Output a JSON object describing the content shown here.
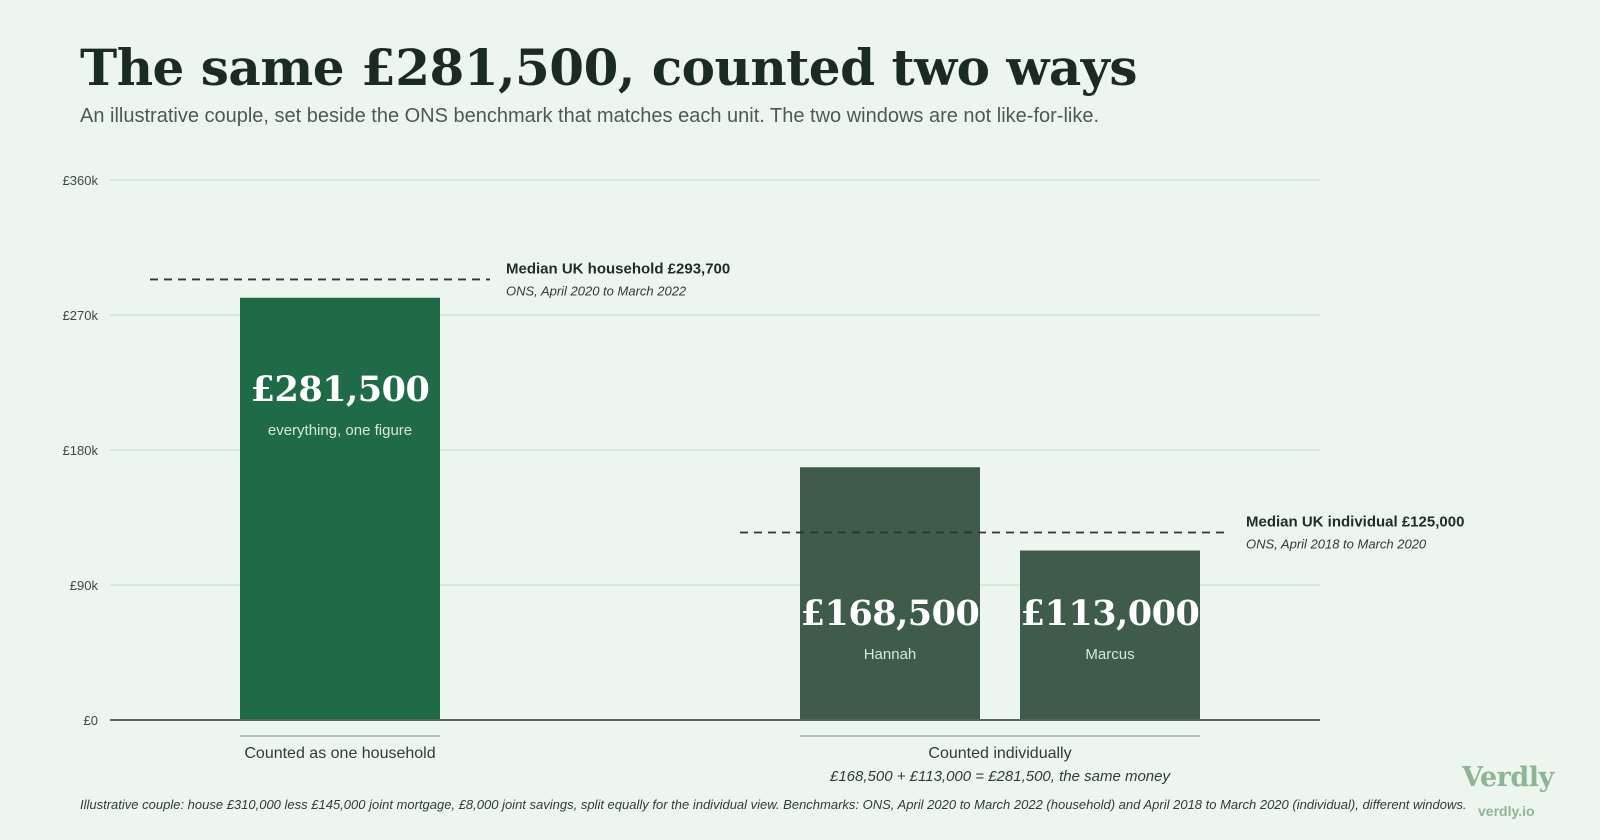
{
  "header": {
    "title": "The same £281,500, counted two ways",
    "subtitle": "An illustrative couple, set beside the ONS benchmark that matches each unit. The two windows are not like-for-like."
  },
  "footer": {
    "note": "Illustrative couple: house £310,000 less £145,000 joint mortgage, £8,000 joint savings, split equally for the individual view. Benchmarks: ONS, April 2020 to March 2022 (household) and April 2018 to March 2020 (individual), different windows.",
    "brand": "Verdly",
    "url": "verdly.io"
  },
  "colors": {
    "background": "#edf6ee",
    "household_bar": "#206b47",
    "individual_bar": "#3f5b4a",
    "grid": "#cfe3d4",
    "axis": "#55665d",
    "benchmark_line": "#333333",
    "brand": "#8db596"
  },
  "chart_data": {
    "type": "bar",
    "title": "The same £281,500, counted two ways",
    "ylim": [
      0,
      360000
    ],
    "yticks": [
      {
        "value": 0,
        "label": "£0"
      },
      {
        "value": 90000,
        "label": "£90k"
      },
      {
        "value": 180000,
        "label": "£180k"
      },
      {
        "value": 270000,
        "label": "£270k"
      },
      {
        "value": 360000,
        "label": "£360k"
      }
    ],
    "grid": true,
    "groups": [
      {
        "label": "Counted as one household",
        "sublabel": "",
        "bars": [
          {
            "value": 281500,
            "value_label": "£281,500",
            "caption": "everything, one figure",
            "color": "#206b47"
          }
        ],
        "benchmark": {
          "value": 293700,
          "label": "Median UK household £293,700",
          "source": "ONS, April 2020 to March 2022"
        }
      },
      {
        "label": "Counted individually",
        "sublabel": "£168,500 + £113,000 = £281,500, the same money",
        "bars": [
          {
            "value": 168500,
            "value_label": "£168,500",
            "caption": "Hannah",
            "color": "#3f5b4a"
          },
          {
            "value": 113000,
            "value_label": "£113,000",
            "caption": "Marcus",
            "color": "#3f5b4a"
          }
        ],
        "benchmark": {
          "value": 125000,
          "label": "Median UK individual £125,000",
          "source": "ONS, April 2018 to March 2020"
        }
      }
    ]
  }
}
